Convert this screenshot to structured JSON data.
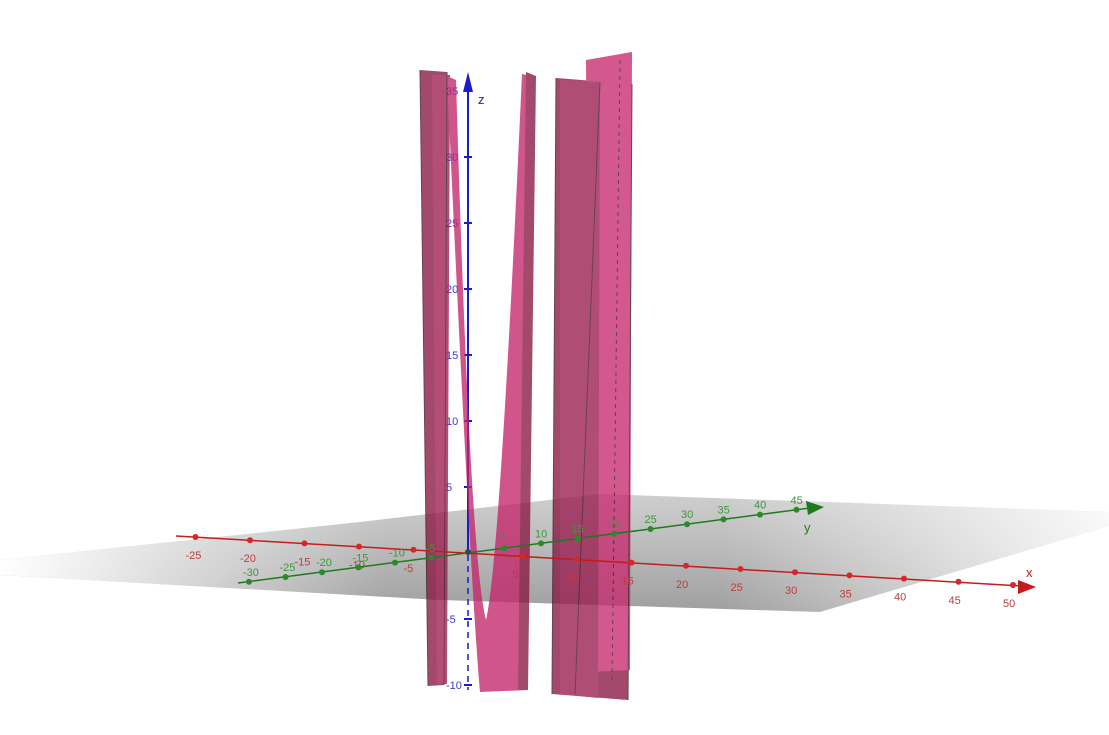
{
  "view": {
    "axes": {
      "x": {
        "label": "x",
        "color": "#c41c1c",
        "ticks": [
          "-25",
          "-20",
          "-15",
          "-10",
          "-5",
          "5",
          "10",
          "15",
          "20",
          "25",
          "30",
          "35",
          "40",
          "45",
          "50"
        ]
      },
      "y": {
        "label": "y",
        "color": "#1e7a1e",
        "ticks": [
          "-30",
          "-25",
          "-20",
          "-15",
          "-10",
          "-5",
          "5",
          "10",
          "15",
          "20",
          "25",
          "30",
          "35",
          "40",
          "45"
        ]
      },
      "z": {
        "label": "z",
        "color": "#1a1ad0",
        "ticks": [
          "-10",
          "-5",
          "5",
          "10",
          "15",
          "20",
          "25",
          "30",
          "35"
        ]
      }
    },
    "plane_color": "#9a9a9a",
    "surface_color": "#b01f5c"
  }
}
